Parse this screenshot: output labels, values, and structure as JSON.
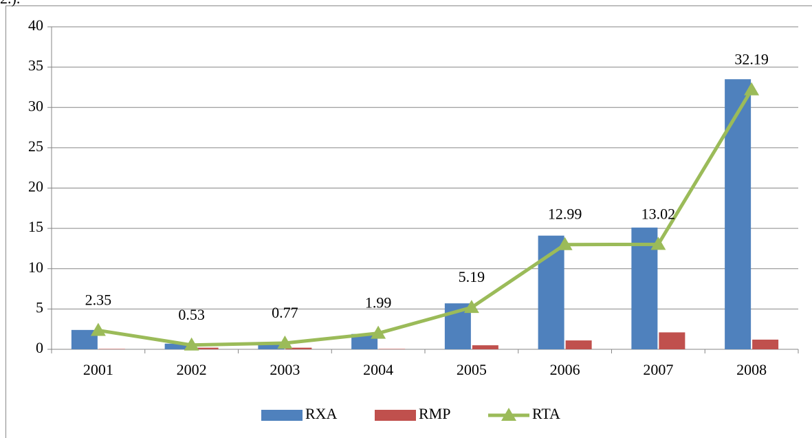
{
  "fragment": "2.).",
  "chart_data": {
    "type": "bar_line",
    "categories": [
      "2001",
      "2002",
      "2003",
      "2004",
      "2005",
      "2006",
      "2007",
      "2008"
    ],
    "series": [
      {
        "name": "RXA",
        "type": "bar",
        "color": "#4f81bd",
        "values": [
          2.4,
          0.7,
          0.9,
          1.9,
          5.7,
          14.1,
          15.1,
          33.5
        ]
      },
      {
        "name": "RMP",
        "type": "bar",
        "color": "#c0504d",
        "values": [
          0.05,
          0.2,
          0.2,
          0.05,
          0.5,
          1.1,
          2.1,
          1.2
        ]
      },
      {
        "name": "RTA",
        "type": "line",
        "color": "#9bbb59",
        "marker": "triangle",
        "data_labels": true,
        "values": [
          2.35,
          0.53,
          0.77,
          1.99,
          5.19,
          12.99,
          13.02,
          32.19
        ]
      }
    ],
    "ylim": [
      0,
      40
    ],
    "yticks": [
      0,
      5,
      10,
      15,
      20,
      25,
      30,
      35,
      40
    ],
    "grid": true,
    "legend": "bottom"
  }
}
